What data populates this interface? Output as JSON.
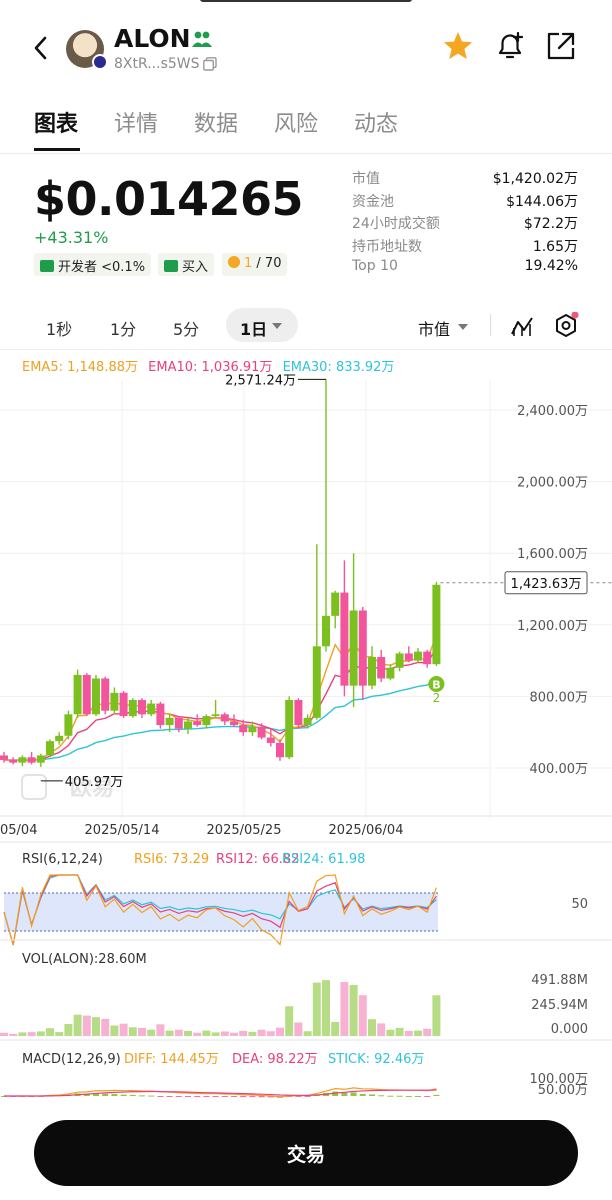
{
  "header": {
    "token_name": "ALON",
    "token_address": "8XtR...s5WS"
  },
  "tabs": [
    {
      "label": "图表"
    },
    {
      "label": "详情"
    },
    {
      "label": "数据"
    },
    {
      "label": "风险"
    },
    {
      "label": "动态"
    }
  ],
  "price": {
    "value": "$0.014265",
    "change": "+43.31%",
    "dev_pill": "开发者 <0.1%",
    "buy_pill": "买入",
    "rank_pill_num": "1",
    "rank_pill_total": " / 70"
  },
  "stats": [
    {
      "label": "市值",
      "value": "$1,420.02万"
    },
    {
      "label": "资金池",
      "value": "$144.06万"
    },
    {
      "label": "24小时成交额",
      "value": "$72.2万"
    },
    {
      "label": "持币地址数",
      "value": "1.65万"
    },
    {
      "label": "Top 10",
      "value": "19.42%"
    }
  ],
  "timeframes": {
    "t1": "1秒",
    "t2": "1分",
    "t3": "5分",
    "active": "1日",
    "metric": "市值"
  },
  "ema_legend": {
    "ema5": "EMA5: 1,148.88万",
    "ema10": "EMA10: 1,036.91万",
    "ema30": "EMA30: 833.92万"
  },
  "colors": {
    "up": "#7cc01f",
    "down": "#f2559c",
    "ema5": "#f0a020",
    "ema10": "#e8407e",
    "ema30": "#2ec4d8",
    "accent_star": "#f5a623"
  },
  "chart_data": {
    "type": "candlestick",
    "y_axis_labels": [
      "2,400.00万",
      "2,000.00万",
      "1,600.00万",
      "1,200.00万",
      "800.00万",
      "400.00万"
    ],
    "x_axis_labels": [
      "05/04",
      "2025/05/14",
      "2025/05/25",
      "2025/06/04"
    ],
    "max_label": "2,571.24万",
    "min_label": "405.97万",
    "last_price_label": "1,423.63万",
    "markers": {
      "buy": "B",
      "count": "2"
    },
    "watermark": "欧易",
    "rsi_title": "RSI(6,12,24)",
    "rsi6": "RSI6: 73.29",
    "rsi12": "RSI12: 66.82",
    "rsi24": "RSI24: 61.98",
    "rsi_level": "50",
    "vol_title": "VOL(ALON):28.60M",
    "vol_labels": [
      "491.88M",
      "245.94M",
      "0.000"
    ],
    "macd_title": "MACD(12,26,9)",
    "macd_diff": "DIFF: 144.45万",
    "macd_dea": "DEA: 98.22万",
    "macd_stick": "STICK: 92.46万",
    "macd_labels": [
      "100.00万",
      "50.00万"
    ],
    "candles": [
      {
        "o": 470,
        "h": 490,
        "l": 430,
        "c": 445
      },
      {
        "o": 445,
        "h": 460,
        "l": 420,
        "c": 430
      },
      {
        "o": 430,
        "h": 470,
        "l": 410,
        "c": 460
      },
      {
        "o": 460,
        "h": 490,
        "l": 420,
        "c": 430
      },
      {
        "o": 430,
        "h": 480,
        "l": 405.97,
        "c": 470
      },
      {
        "o": 470,
        "h": 560,
        "l": 460,
        "c": 550
      },
      {
        "o": 550,
        "h": 600,
        "l": 530,
        "c": 580
      },
      {
        "o": 580,
        "h": 720,
        "l": 560,
        "c": 700
      },
      {
        "o": 700,
        "h": 950,
        "l": 680,
        "c": 920
      },
      {
        "o": 920,
        "h": 930,
        "l": 690,
        "c": 700
      },
      {
        "o": 700,
        "h": 920,
        "l": 690,
        "c": 900
      },
      {
        "o": 900,
        "h": 910,
        "l": 700,
        "c": 720
      },
      {
        "o": 720,
        "h": 850,
        "l": 700,
        "c": 820
      },
      {
        "o": 820,
        "h": 830,
        "l": 680,
        "c": 690
      },
      {
        "o": 690,
        "h": 790,
        "l": 680,
        "c": 780
      },
      {
        "o": 780,
        "h": 790,
        "l": 680,
        "c": 700
      },
      {
        "o": 700,
        "h": 780,
        "l": 690,
        "c": 760
      },
      {
        "o": 760,
        "h": 770,
        "l": 620,
        "c": 640
      },
      {
        "o": 640,
        "h": 700,
        "l": 600,
        "c": 680
      },
      {
        "o": 680,
        "h": 690,
        "l": 600,
        "c": 620
      },
      {
        "o": 620,
        "h": 680,
        "l": 590,
        "c": 660
      },
      {
        "o": 660,
        "h": 700,
        "l": 630,
        "c": 640
      },
      {
        "o": 640,
        "h": 700,
        "l": 620,
        "c": 690
      },
      {
        "o": 690,
        "h": 780,
        "l": 680,
        "c": 700
      },
      {
        "o": 700,
        "h": 710,
        "l": 640,
        "c": 660
      },
      {
        "o": 660,
        "h": 700,
        "l": 630,
        "c": 640
      },
      {
        "o": 640,
        "h": 670,
        "l": 580,
        "c": 600
      },
      {
        "o": 600,
        "h": 660,
        "l": 580,
        "c": 630
      },
      {
        "o": 630,
        "h": 650,
        "l": 560,
        "c": 570
      },
      {
        "o": 570,
        "h": 620,
        "l": 520,
        "c": 540
      },
      {
        "o": 540,
        "h": 560,
        "l": 440,
        "c": 460
      },
      {
        "o": 460,
        "h": 800,
        "l": 450,
        "c": 780
      },
      {
        "o": 780,
        "h": 790,
        "l": 620,
        "c": 640
      },
      {
        "o": 640,
        "h": 700,
        "l": 620,
        "c": 680
      },
      {
        "o": 680,
        "h": 1650,
        "l": 670,
        "c": 1080
      },
      {
        "o": 1080,
        "h": 2571.24,
        "l": 1050,
        "c": 1250
      },
      {
        "o": 1250,
        "h": 1390,
        "l": 1180,
        "c": 1380
      },
      {
        "o": 1380,
        "h": 1560,
        "l": 800,
        "c": 860
      },
      {
        "o": 860,
        "h": 1600,
        "l": 740,
        "c": 1280
      },
      {
        "o": 1280,
        "h": 1300,
        "l": 780,
        "c": 860
      },
      {
        "o": 860,
        "h": 1080,
        "l": 840,
        "c": 1020
      },
      {
        "o": 1020,
        "h": 1060,
        "l": 880,
        "c": 900
      },
      {
        "o": 900,
        "h": 980,
        "l": 890,
        "c": 960
      },
      {
        "o": 960,
        "h": 1050,
        "l": 940,
        "c": 1040
      },
      {
        "o": 1040,
        "h": 1080,
        "l": 990,
        "c": 1000
      },
      {
        "o": 1000,
        "h": 1070,
        "l": 990,
        "c": 1050
      },
      {
        "o": 1050,
        "h": 1060,
        "l": 960,
        "c": 980
      },
      {
        "o": 980,
        "h": 1440,
        "l": 970,
        "c": 1423.63
      }
    ]
  },
  "trade_button": "交易"
}
